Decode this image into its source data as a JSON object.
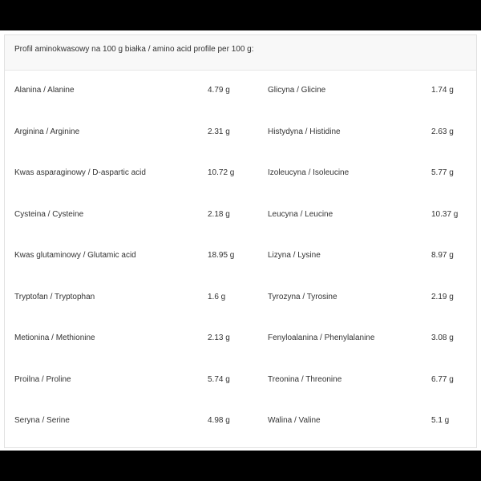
{
  "table": {
    "caption": "Profil aminokwasowy na 100 g białka / amino acid profile per 100 g:",
    "rows": [
      [
        "Alanina / Alanine",
        "4.79 g",
        "Glicyna / Glicine",
        "1.74 g"
      ],
      [
        "Arginina / Arginine",
        "2.31 g",
        "Histydyna / Histidine",
        "2.63 g"
      ],
      [
        "Kwas asparaginowy / D-aspartic acid",
        "10.72 g",
        "Izoleucyna / Isoleucine",
        "5.77 g"
      ],
      [
        "Cysteina / Cysteine",
        "2.18 g",
        "Leucyna / Leucine",
        "10.37 g"
      ],
      [
        "Kwas glutaminowy / Glutamic acid",
        "18.95 g",
        "Lizyna / Lysine",
        "8.97 g"
      ],
      [
        "Tryptofan / Tryptophan",
        "1.6 g",
        "Tyrozyna / Tyrosine",
        "2.19 g"
      ],
      [
        "Metionina / Methionine",
        "2.13 g",
        "Fenyloalanina / Phenylalanine",
        "3.08 g"
      ],
      [
        "Proilna / Proline",
        "5.74 g",
        "Treonina / Threonine",
        "6.77 g"
      ],
      [
        "Seryna / Serine",
        "4.98 g",
        "Walina / Valine",
        "5.1 g"
      ]
    ]
  }
}
